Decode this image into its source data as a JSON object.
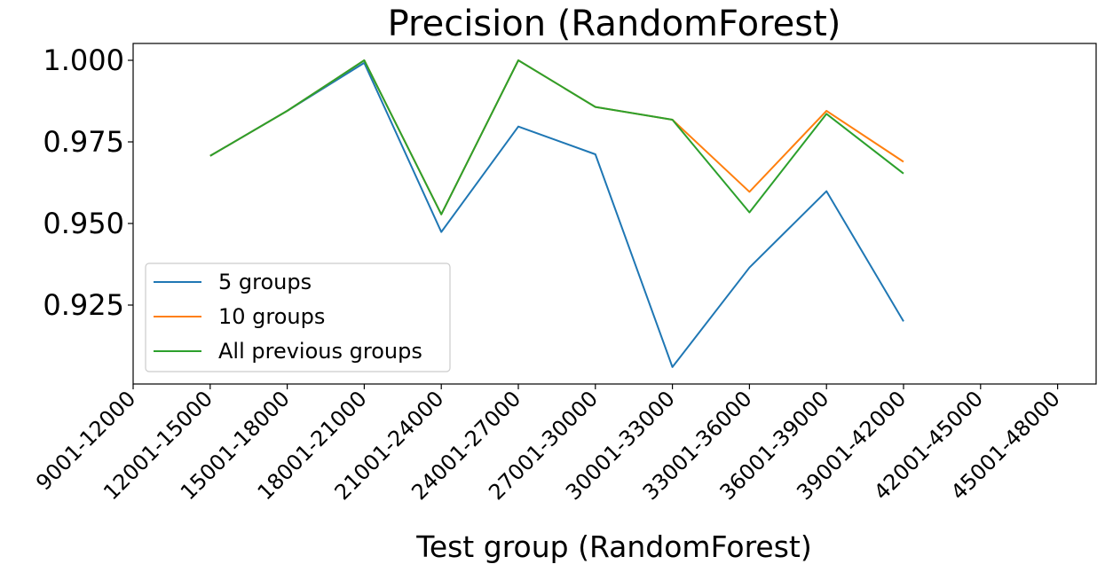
{
  "chart_data": {
    "type": "line",
    "title": "Precision (RandomForest)",
    "xlabel": "Test group (RandomForest)",
    "ylabel": "",
    "categories": [
      "9001-12000",
      "12001-15000",
      "15001-18000",
      "18001-21000",
      "21001-24000",
      "24001-27000",
      "27001-30000",
      "30001-33000",
      "33001-36000",
      "36001-39000",
      "39001-42000",
      "42001-45000",
      "45001-48000"
    ],
    "yticks": [
      "1.000",
      "0.975",
      "0.950",
      "0.925"
    ],
    "ylim": [
      0.9025,
      1.0045
    ],
    "grid": false,
    "legend_position": "lower-left",
    "series": [
      {
        "name": "5 groups",
        "color": "#1f77b4",
        "values": [
          null,
          0.9707,
          0.9845,
          0.9992,
          0.9474,
          0.9797,
          0.9712,
          0.906,
          0.9365,
          0.9599,
          0.92,
          null,
          null
        ]
      },
      {
        "name": "10 groups",
        "color": "#ff7f0e",
        "values": [
          null,
          0.9707,
          0.9845,
          1.0,
          0.9528,
          1.0,
          0.9857,
          0.9818,
          0.9597,
          0.9845,
          0.9689,
          null,
          null
        ]
      },
      {
        "name": "All previous groups",
        "color": "#2ca02c",
        "values": [
          null,
          0.9707,
          0.9845,
          1.0,
          0.9528,
          1.0,
          0.9857,
          0.9818,
          0.9534,
          0.9836,
          0.9653,
          null,
          null
        ]
      }
    ]
  }
}
